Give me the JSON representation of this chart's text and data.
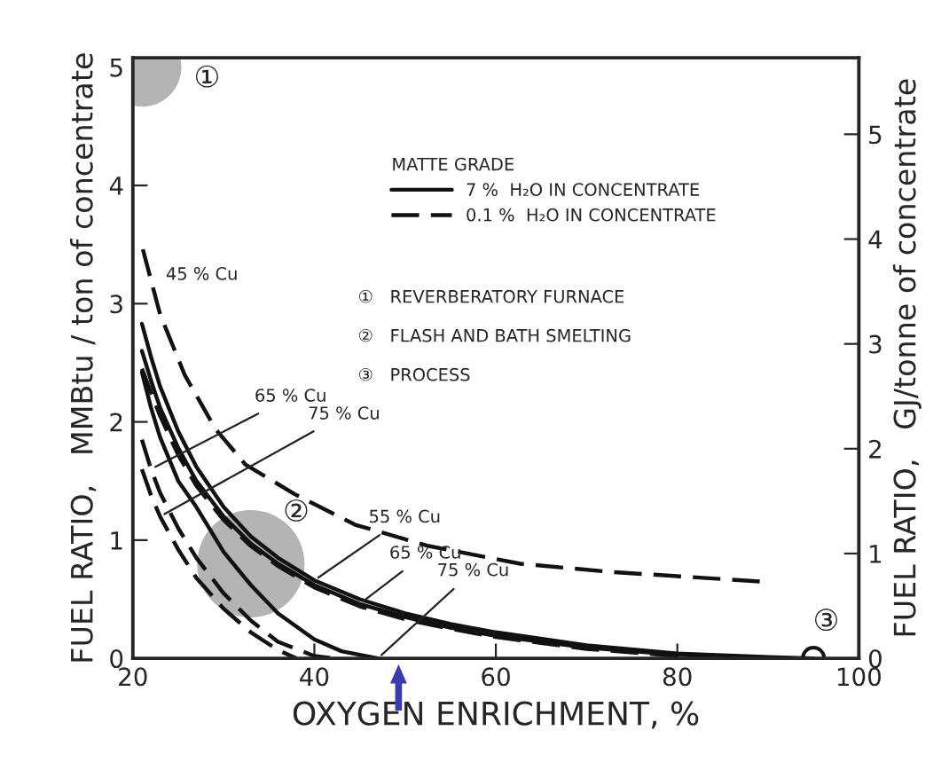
{
  "chart_data": {
    "type": "line",
    "xlabel": "OXYGEN ENRICHMENT, %",
    "ylabel": "FUEL RATIO,   MMBtu / ton of concentrate",
    "y2label": "FUEL RATIO,   GJ/tonne of concentrate",
    "legend_title": "MATTE GRADE",
    "legend": "top",
    "xlim": [
      20,
      100
    ],
    "xticks": [
      20,
      40,
      60,
      80,
      100
    ],
    "ylim": [
      0,
      5.08
    ],
    "yticks": [
      0,
      1,
      2,
      3,
      4,
      5
    ],
    "y2lim": [
      0,
      5.73
    ],
    "y2ticks": [
      0,
      1,
      2,
      3,
      4,
      5
    ],
    "grid": false,
    "series": [
      {
        "name": "7 %  H₂O IN CONCENTRATE",
        "line_style": "solid",
        "color": "#111111",
        "x": [
          21,
          22,
          23,
          25,
          27,
          30,
          33,
          36,
          40,
          45,
          50,
          55,
          60,
          70,
          80,
          90,
          95
        ],
        "values": [
          2.83,
          2.55,
          2.3,
          1.92,
          1.62,
          1.28,
          1.03,
          0.85,
          0.66,
          0.5,
          0.38,
          0.29,
          0.22,
          0.11,
          0.04,
          0.01,
          0.0
        ]
      },
      {
        "line_style": "solid",
        "color": "#111111",
        "x": [
          21,
          22,
          23,
          25,
          27,
          30,
          33,
          36,
          40,
          45,
          50,
          55,
          60,
          70,
          80,
          90
        ],
        "values": [
          2.6,
          2.35,
          2.12,
          1.78,
          1.5,
          1.2,
          0.97,
          0.8,
          0.62,
          0.46,
          0.35,
          0.26,
          0.19,
          0.09,
          0.03,
          0.0
        ]
      },
      {
        "line_style": "solid",
        "color": "#111111",
        "x": [
          21,
          22,
          23,
          25,
          27,
          30,
          33,
          36,
          40,
          43,
          47
        ],
        "values": [
          2.42,
          2.12,
          1.87,
          1.5,
          1.28,
          0.9,
          0.62,
          0.38,
          0.16,
          0.06,
          0.0
        ]
      },
      {
        "name": "0.1 %  H₂O IN CONCENTRATE",
        "line_style": "dashed",
        "color": "#111111",
        "x": [
          21.1,
          23,
          25.7,
          29.1,
          32.4,
          37.8,
          44.5,
          52.6,
          62.7,
          72.8,
          89.2
        ],
        "values": [
          3.46,
          2.91,
          2.4,
          1.94,
          1.64,
          1.39,
          1.13,
          0.95,
          0.8,
          0.73,
          0.65
        ]
      },
      {
        "line_style": "dashed",
        "color": "#111111",
        "x": [
          21,
          22,
          23,
          25,
          27,
          30,
          33,
          36,
          40,
          45,
          50,
          55,
          60,
          70,
          80,
          90,
          95
        ],
        "values": [
          2.45,
          2.25,
          2.05,
          1.72,
          1.46,
          1.17,
          0.95,
          0.78,
          0.6,
          0.44,
          0.33,
          0.25,
          0.18,
          0.08,
          0.02,
          0.0,
          0.0
        ]
      },
      {
        "line_style": "dashed",
        "color": "#111111",
        "x": [
          21,
          22,
          23,
          25,
          27,
          30,
          33,
          36,
          40,
          42
        ],
        "values": [
          1.85,
          1.6,
          1.4,
          1.1,
          0.85,
          0.55,
          0.32,
          0.14,
          0.02,
          0.0
        ]
      },
      {
        "line_style": "dashed",
        "color": "#111111",
        "x": [
          21,
          22,
          23,
          25,
          27,
          30,
          33,
          36,
          38
        ],
        "values": [
          1.6,
          1.38,
          1.2,
          0.92,
          0.68,
          0.42,
          0.22,
          0.07,
          0.0
        ]
      },
      {
        "type": "bubble",
        "x": [
          21,
          33,
          95
        ],
        "values": [
          5,
          0.8,
          0
        ],
        "sizes": [
          0.54,
          1,
          0.04
        ],
        "colors": [
          "#b4b4b4",
          "#b4b4b4",
          "#ffffff"
        ]
      }
    ],
    "annotations": [
      {
        "text": "45 % Cu",
        "x": 22,
        "y": 3.2
      },
      {
        "text": "65 % Cu",
        "x": 22,
        "y": 1.6
      },
      {
        "text": "75 % Cu",
        "x": 23,
        "y": 1.2
      },
      {
        "text": "55 % Cu",
        "x": 40,
        "y": 0.66
      },
      {
        "text": "65 % Cu",
        "x": 45,
        "y": 0.46
      },
      {
        "text": "75 % Cu",
        "x": 47,
        "y": 0
      },
      {
        "text": "①",
        "x": 26,
        "y": 4.9
      },
      "②",
      "③",
      "①   REVERBERATORY FURNACE",
      "②   FLASH AND BATH SMELTING",
      "③   PROCESS"
    ]
  }
}
